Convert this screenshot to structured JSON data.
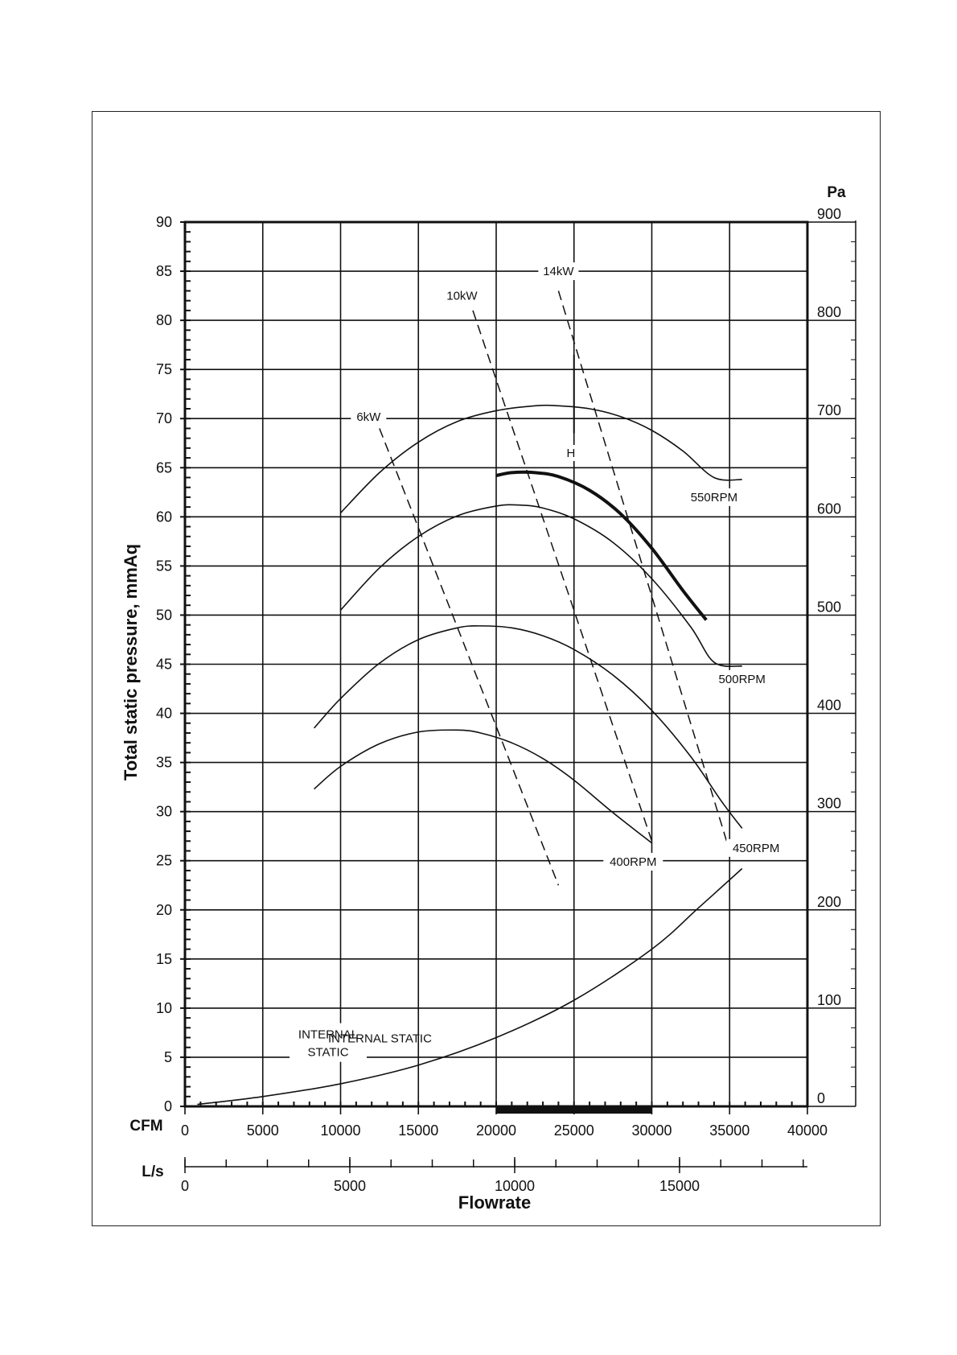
{
  "chart_data": {
    "type": "line",
    "title": "",
    "xlabel": "Flowrate",
    "ylabel": "Total static pressure, mmAq",
    "y2_unit": "Pa",
    "x_unit_cfm": "CFM",
    "x_unit_ls": "L/s",
    "xlim": [
      0,
      40000
    ],
    "ylim": [
      0,
      90
    ],
    "y2lim": [
      0,
      900
    ],
    "grid": true,
    "x_ticks": [
      "0",
      "5000",
      "10000",
      "15000",
      "20000",
      "25000",
      "30000",
      "35000",
      "40000"
    ],
    "ls_ticks": [
      "0",
      "5000",
      "10000",
      "15000"
    ],
    "y_ticks": [
      "0",
      "5",
      "10",
      "15",
      "20",
      "25",
      "30",
      "35",
      "40",
      "45",
      "50",
      "55",
      "60",
      "65",
      "70",
      "75",
      "80",
      "85",
      "90"
    ],
    "y2_ticks": [
      "0",
      "100",
      "200",
      "300",
      "400",
      "500",
      "600",
      "700",
      "800",
      "900"
    ],
    "highlight_range_cfm": [
      20000,
      30000
    ],
    "series": [
      {
        "name": "550RPM",
        "style": "solid",
        "x": [
          10000,
          12500,
          15000,
          17500,
          20000,
          22500,
          24000,
          26000,
          28000,
          30000,
          32000,
          34000,
          35800
        ],
        "y": [
          60.4,
          64.5,
          67.6,
          69.7,
          70.8,
          71.3,
          71.3,
          71.0,
          70.2,
          68.8,
          66.7,
          64.0,
          63.8
        ]
      },
      {
        "name": "500RPM",
        "style": "solid",
        "x": [
          10000,
          12500,
          15000,
          17500,
          20000,
          21500,
          23000,
          25000,
          27500,
          30000,
          32500,
          34000,
          35800
        ],
        "y": [
          50.5,
          54.8,
          58.0,
          60.1,
          61.1,
          61.2,
          60.9,
          59.8,
          57.4,
          53.7,
          48.8,
          45.2,
          44.8
        ]
      },
      {
        "name": "450RPM",
        "style": "solid",
        "x": [
          8300,
          10000,
          12500,
          15000,
          17500,
          19000,
          21000,
          23000,
          25000,
          27500,
          30000,
          32500,
          34500,
          35800
        ],
        "y": [
          38.5,
          41.5,
          45.1,
          47.5,
          48.7,
          48.9,
          48.7,
          47.9,
          46.5,
          43.9,
          40.3,
          35.6,
          31.0,
          28.3
        ]
      },
      {
        "name": "400RPM",
        "style": "solid",
        "x": [
          8300,
          10000,
          12500,
          15000,
          17500,
          19000,
          21000,
          23000,
          25000,
          27500,
          30000
        ],
        "y": [
          32.3,
          34.6,
          36.9,
          38.1,
          38.3,
          38.0,
          37.0,
          35.4,
          33.2,
          29.9,
          26.8
        ]
      },
      {
        "name": "INTERNAL STATIC",
        "style": "solid",
        "x": [
          800,
          5000,
          10000,
          15000,
          20000,
          25000,
          30000,
          33000,
          35800
        ],
        "y": [
          0.2,
          1.0,
          2.3,
          4.2,
          7.0,
          10.8,
          16.0,
          20.2,
          24.2
        ]
      },
      {
        "name": "H",
        "style": "bold",
        "x": [
          20000,
          21000,
          22500,
          24000,
          26000,
          28000,
          30000,
          32000,
          33500
        ],
        "y": [
          64.2,
          64.5,
          64.5,
          64.1,
          62.7,
          60.3,
          56.8,
          52.5,
          49.5
        ]
      },
      {
        "name": "6kW",
        "style": "dashed",
        "x": [
          12500,
          24000
        ],
        "y": [
          69.0,
          22.5
        ]
      },
      {
        "name": "10kW",
        "style": "dashed",
        "x": [
          18500,
          30000
        ],
        "y": [
          81.0,
          27.0
        ]
      },
      {
        "name": "14kW",
        "style": "dashed",
        "x": [
          24000,
          35000
        ],
        "y": [
          83.0,
          26.0
        ]
      }
    ]
  }
}
